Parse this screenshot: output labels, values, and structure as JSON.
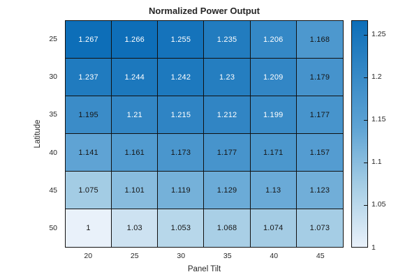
{
  "chart_data": {
    "type": "heatmap",
    "title": "Normalized Power Output",
    "xlabel": "Panel Tilt",
    "ylabel": "Latitude",
    "x_categories": [
      "20",
      "25",
      "30",
      "35",
      "40",
      "45"
    ],
    "y_categories": [
      "25",
      "30",
      "35",
      "40",
      "45",
      "50"
    ],
    "values": [
      [
        1.267,
        1.266,
        1.255,
        1.235,
        1.206,
        1.168
      ],
      [
        1.237,
        1.244,
        1.242,
        1.23,
        1.209,
        1.179
      ],
      [
        1.195,
        1.21,
        1.215,
        1.212,
        1.199,
        1.177
      ],
      [
        1.141,
        1.161,
        1.173,
        1.177,
        1.171,
        1.157
      ],
      [
        1.075,
        1.101,
        1.119,
        1.129,
        1.13,
        1.123
      ],
      [
        1,
        1.03,
        1.053,
        1.068,
        1.074,
        1.073
      ]
    ],
    "color_limits": [
      1,
      1.267
    ],
    "colorbar_ticks": [
      1,
      1.05,
      1.1,
      1.15,
      1.2,
      1.25
    ],
    "colorbar_tick_labels": [
      "1",
      "1.05",
      "1.1",
      "1.15",
      "1.2",
      "1.25"
    ],
    "colormap_anchors": [
      {
        "t": 0,
        "color": "#e9f1fa"
      },
      {
        "t": 0.28,
        "color": "#a3cce4"
      },
      {
        "t": 0.53,
        "color": "#5ea3d4"
      },
      {
        "t": 1,
        "color": "#0d6eb8"
      }
    ],
    "white_text_threshold": 1.197,
    "grid_line_color": "#101010",
    "label_color": "#262626",
    "cell_text_dark": "#151515",
    "cell_text_light": "#ffffff",
    "legend_position": "right-colorbar",
    "grid": "on"
  }
}
